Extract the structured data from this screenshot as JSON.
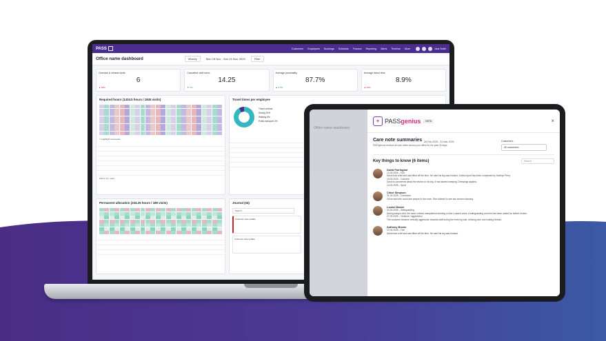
{
  "laptop": {
    "app_name": "PASS",
    "nav": [
      "Customers",
      "Employees",
      "Bookings",
      "Schedule",
      "Finance",
      "Reporting",
      "Alerts",
      "Timeline",
      "More"
    ],
    "user": "Jane Smith",
    "dashboard_title": "Office name dashboard",
    "period": "Weekly",
    "range": "Mon 18 Nov - Sun 24 Nov, 2024",
    "filter": "Filter",
    "kpis": [
      {
        "label": "Overdue & missed visits",
        "value": "6",
        "change": "▲ 25%",
        "dir": "dn"
      },
      {
        "label": "Cancelled visit hours",
        "value": "14.25",
        "change": "▼ 7%",
        "dir": "up"
      },
      {
        "label": "Average punctuality",
        "value": "87.7%",
        "change": "▲ 3.7%",
        "dir": "up"
      },
      {
        "label": "Average travel time",
        "value": "8.9%",
        "change": "▲ 25%",
        "dir": "dn"
      }
    ],
    "required_hours_title": "Required hours (1434.5 hours / 1845 visits)",
    "highlight_label": "Highlight uncovered",
    "permanent_title": "Permanent allocation (234.25 hours / 189 visits)",
    "travel_title": "Travel times per employee",
    "travel_legend": [
      "Travel method",
      "Driving  92%",
      "Walking  6%",
      "Public transport  2%"
    ],
    "journal_title": "Journal (34)",
    "journal_search": "Search",
    "journal_card": "Customer care update",
    "pager": "First  1  2  3  ›  Last"
  },
  "tablet": {
    "dim_title": "Office name dashboard",
    "brand_pre": "PASS",
    "brand_post": "genius",
    "beta": "BETA",
    "close": "×",
    "title": "Care note summaries",
    "dates": "28 Feb 2025 - 31 Mar 2025",
    "desc": "PASSgenius reviews all care notes across your office for the past 30 days.",
    "customers_label": "Customers",
    "customers_value": "All customers",
    "key_title": "Key things to know (6 items)",
    "search": "Search",
    "people": [
      {
        "name": "David Farrington",
        "lines": [
          "12.03.2025 – Fall",
          "David had a fall and was lifted off the floor. He said his leg was bruised. A falls report has been completed by Kathryn Perry.",
          "19.03.2025 – Concern",
          "David is concerned about the bruise on his leg. If has started weeping. Dressings applied.",
          "24.03.2025 – Spurt"
        ]
      },
      {
        "name": "Chloe Simpson",
        "lines": [
          "31.03.2025 – Confusion",
          "Chloe said she could see people in the room. She claimed to see two women dancing."
        ]
      },
      {
        "name": "Louise Mason",
        "lines": [
          "02.03.2025 – Safeguarding",
          "During today's visit, the carer noticed unexplained bruising on the Louise's arms. A safeguarding concern has been raised for further review.",
          "27.03.2025 – Violence / aggression",
          "The customer became verbally aggressive towards staff during the evening visit, refusing care and making threats."
        ]
      },
      {
        "name": "Anthony Brown",
        "lines": [
          "12.03.2025 – Fall",
          "David had a fall and was lifted off the floor. He said his leg was bruised."
        ]
      }
    ]
  }
}
